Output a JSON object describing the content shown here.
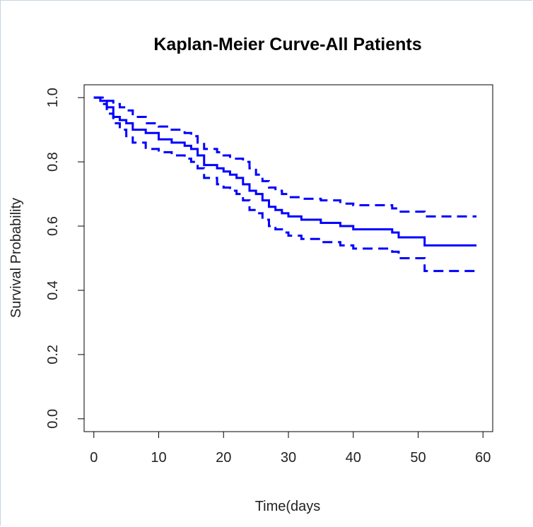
{
  "chart_data": {
    "type": "line",
    "title": "Kaplan-Meier Curve-All Patients",
    "xlabel": "Time(days",
    "ylabel": "Survival Probability",
    "xlim": [
      -1.5,
      61.5
    ],
    "ylim": [
      -0.04,
      1.04
    ],
    "xticks": [
      0,
      10,
      20,
      30,
      40,
      50,
      60
    ],
    "yticks": [
      0.0,
      0.2,
      0.4,
      0.6,
      0.8,
      1.0
    ],
    "xtick_labels": [
      "0",
      "10",
      "20",
      "30",
      "40",
      "50",
      "60"
    ],
    "ytick_labels": [
      "0.0",
      "0.2",
      "0.4",
      "0.6",
      "0.8",
      "1.0"
    ],
    "step": true,
    "color": "#0000ff",
    "series": [
      {
        "style": "solid",
        "x": [
          0,
          1,
          2,
          3,
          4,
          5,
          6,
          8,
          10,
          12,
          14,
          15,
          16,
          17,
          19,
          20,
          21,
          22,
          23,
          24,
          25,
          26,
          27,
          28,
          29,
          30,
          32,
          35,
          38,
          40,
          46,
          47,
          51,
          59
        ],
        "y": [
          1.0,
          0.99,
          0.97,
          0.94,
          0.93,
          0.92,
          0.9,
          0.89,
          0.87,
          0.86,
          0.85,
          0.84,
          0.82,
          0.79,
          0.78,
          0.77,
          0.76,
          0.75,
          0.73,
          0.71,
          0.7,
          0.68,
          0.66,
          0.65,
          0.64,
          0.63,
          0.62,
          0.61,
          0.6,
          0.59,
          0.58,
          0.565,
          0.54,
          0.54
        ]
      },
      {
        "style": "dashed",
        "x": [
          0,
          1,
          2,
          3,
          4,
          5,
          6,
          8,
          10,
          12,
          14,
          15,
          16,
          17,
          19,
          20,
          21,
          22,
          23,
          24,
          25,
          26,
          27,
          28,
          29,
          30,
          32,
          35,
          38,
          40,
          46,
          47,
          51,
          59
        ],
        "y": [
          1.0,
          1.0,
          0.99,
          0.98,
          0.97,
          0.96,
          0.94,
          0.92,
          0.91,
          0.9,
          0.89,
          0.88,
          0.86,
          0.84,
          0.83,
          0.82,
          0.81,
          0.81,
          0.8,
          0.78,
          0.76,
          0.74,
          0.72,
          0.71,
          0.7,
          0.69,
          0.685,
          0.68,
          0.67,
          0.665,
          0.655,
          0.645,
          0.63,
          0.63
        ]
      },
      {
        "style": "dashed",
        "x": [
          0,
          1,
          2,
          3,
          4,
          5,
          6,
          8,
          10,
          12,
          14,
          15,
          16,
          17,
          19,
          20,
          21,
          22,
          23,
          24,
          25,
          26,
          27,
          28,
          29,
          30,
          32,
          35,
          38,
          40,
          46,
          47,
          51,
          59
        ],
        "y": [
          1.0,
          0.98,
          0.95,
          0.92,
          0.9,
          0.88,
          0.86,
          0.84,
          0.83,
          0.82,
          0.81,
          0.8,
          0.78,
          0.75,
          0.73,
          0.72,
          0.71,
          0.7,
          0.68,
          0.65,
          0.64,
          0.62,
          0.6,
          0.59,
          0.58,
          0.57,
          0.56,
          0.55,
          0.54,
          0.53,
          0.52,
          0.5,
          0.46,
          0.46
        ]
      }
    ]
  }
}
